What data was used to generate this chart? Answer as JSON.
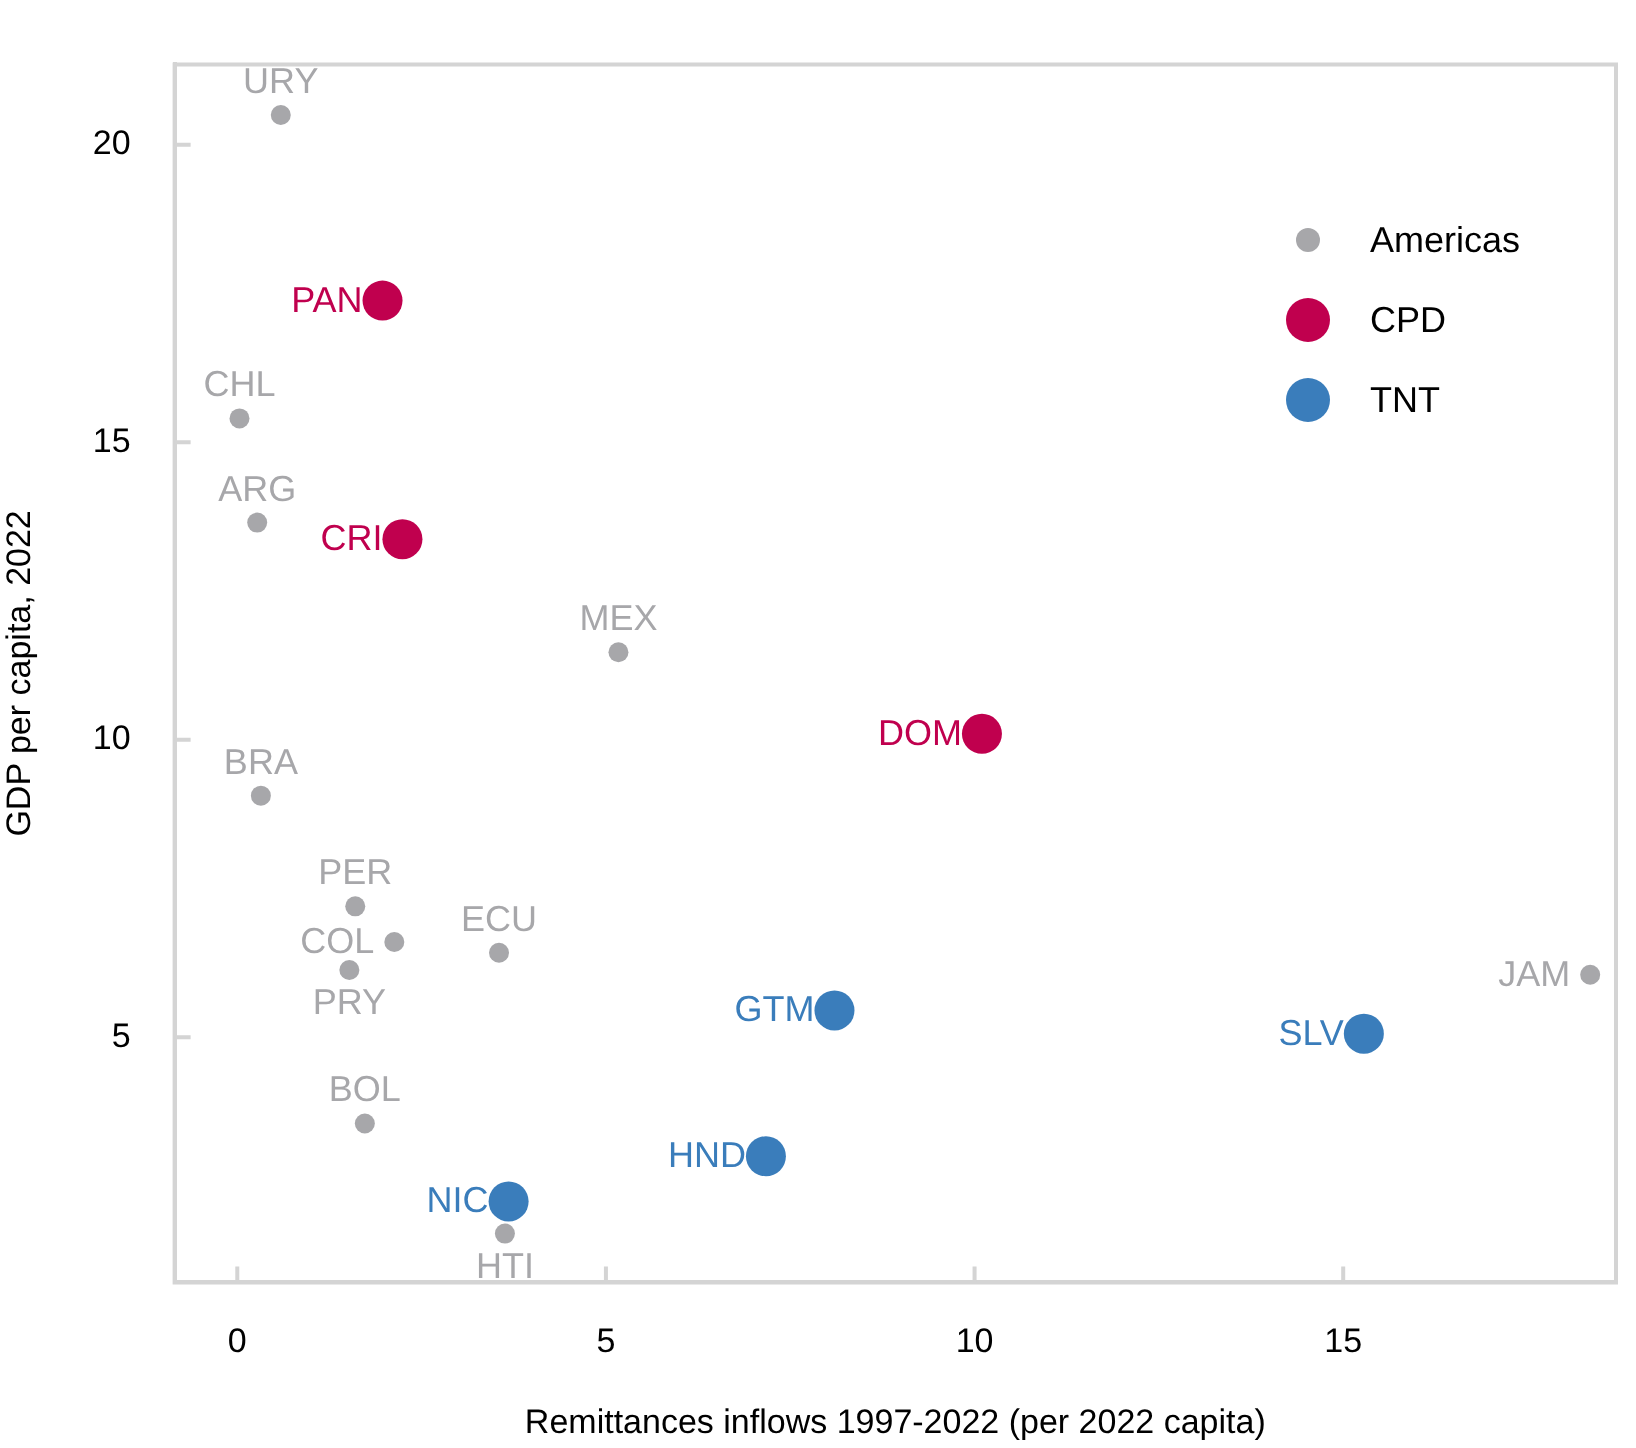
{
  "chart_data": {
    "type": "scatter",
    "xlabel": "Remittances inflows 1997-2022 (per 2022 capita)",
    "ylabel": "GDP per capita, 2022",
    "xlim": [
      -0.85,
      18.7
    ],
    "ylim": [
      0.88,
      21.35
    ],
    "xticks": [
      0,
      5,
      10,
      15
    ],
    "yticks": [
      5,
      10,
      15,
      20
    ],
    "grid": false,
    "legend": "top right",
    "marker": "circle",
    "series": [
      {
        "name": "Americas",
        "color": "#a7a7aa",
        "x": [
          0.59,
          0.03,
          0.27,
          5.17,
          0.32,
          1.6,
          2.13,
          1.52,
          3.55,
          1.73,
          3.63,
          18.35
        ],
        "values": [
          20.5,
          15.4,
          13.65,
          11.47,
          9.06,
          7.2,
          6.6,
          6.13,
          6.42,
          3.55,
          1.7,
          6.05
        ]
      },
      {
        "name": "CPD",
        "color": "#c0004e",
        "x": [
          1.97,
          2.24,
          10.1
        ],
        "values": [
          17.38,
          13.37,
          10.1
        ]
      },
      {
        "name": "TNT",
        "color": "#3a7dbb",
        "x": [
          8.1,
          7.17,
          3.68,
          15.28
        ],
        "values": [
          5.45,
          3.0,
          2.24,
          5.06
        ]
      }
    ],
    "annotations": [
      {
        "text": "URY",
        "x": 0.59,
        "y": 20.5
      },
      {
        "text": "CHL",
        "x": 0.03,
        "y": 15.4
      },
      {
        "text": "ARG",
        "x": 0.27,
        "y": 13.65
      },
      {
        "text": "MEX",
        "x": 5.17,
        "y": 11.47
      },
      {
        "text": "BRA",
        "x": 0.32,
        "y": 9.06
      },
      {
        "text": "PER",
        "x": 1.6,
        "y": 7.2
      },
      {
        "text": "COL",
        "x": 2.13,
        "y": 6.6
      },
      {
        "text": "PRY",
        "x": 1.52,
        "y": 6.13
      },
      {
        "text": "ECU",
        "x": 3.55,
        "y": 6.42
      },
      {
        "text": "BOL",
        "x": 1.73,
        "y": 3.55
      },
      {
        "text": "HTI",
        "x": 3.63,
        "y": 1.7
      },
      {
        "text": "JAM",
        "x": 18.35,
        "y": 6.05
      },
      {
        "text": "PAN",
        "x": 1.97,
        "y": 17.38
      },
      {
        "text": "CRI",
        "x": 2.24,
        "y": 13.37
      },
      {
        "text": "DOM",
        "x": 10.1,
        "y": 10.1
      },
      {
        "text": "GTM",
        "x": 8.1,
        "y": 5.45
      },
      {
        "text": "HND",
        "x": 7.17,
        "y": 3.0
      },
      {
        "text": "NIC",
        "x": 3.68,
        "y": 2.24
      },
      {
        "text": "SLV",
        "x": 15.28,
        "y": 5.06
      }
    ]
  }
}
